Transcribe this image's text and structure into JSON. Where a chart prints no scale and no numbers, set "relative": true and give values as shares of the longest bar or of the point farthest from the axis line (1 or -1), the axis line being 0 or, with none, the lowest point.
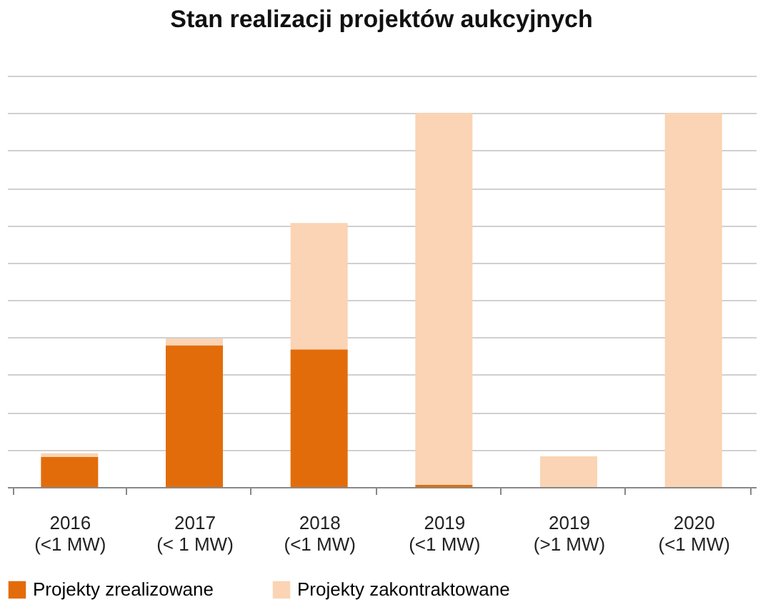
{
  "chart_data": {
    "type": "bar",
    "title": "Stan realizacji projektów aukcyjnych",
    "categories": [
      "2016\n(<1 MW)",
      "2017\n(< 1 MW)",
      "2018\n(<1 MW)",
      "2019\n(<1 MW)",
      "2019\n(>1 MW)",
      "2020\n(<1 MW)"
    ],
    "stacked": true,
    "relative": true,
    "grid": "y",
    "legend": "bottom",
    "series": [
      {
        "name": "Projekty zrealizowane",
        "color": "#e36c0a",
        "values": [
          0.08,
          0.379,
          0.368,
          0.006,
          0,
          0
        ]
      },
      {
        "name": "Projekty zakontraktowane",
        "color": "#fad4b4",
        "values": [
          0.01,
          0.018,
          0.338,
          0.994,
          0.082,
          1
        ]
      }
    ]
  }
}
